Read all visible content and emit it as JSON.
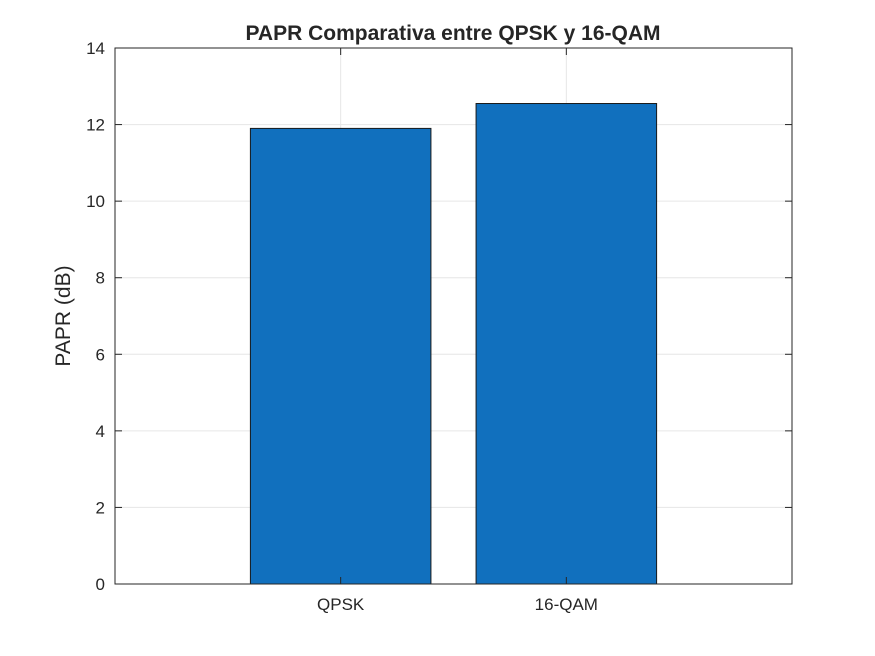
{
  "chart_data": {
    "type": "bar",
    "title": "PAPR Comparativa entre QPSK y 16-QAM",
    "xlabel": "",
    "ylabel": "PAPR (dB)",
    "categories": [
      "QPSK",
      "16-QAM"
    ],
    "values": [
      11.9,
      12.55
    ],
    "ylim": [
      0,
      14
    ],
    "yticks": [
      0,
      2,
      4,
      6,
      8,
      10,
      12,
      14
    ],
    "grid": true,
    "legend": "none",
    "bar_color": "#1170BE"
  }
}
